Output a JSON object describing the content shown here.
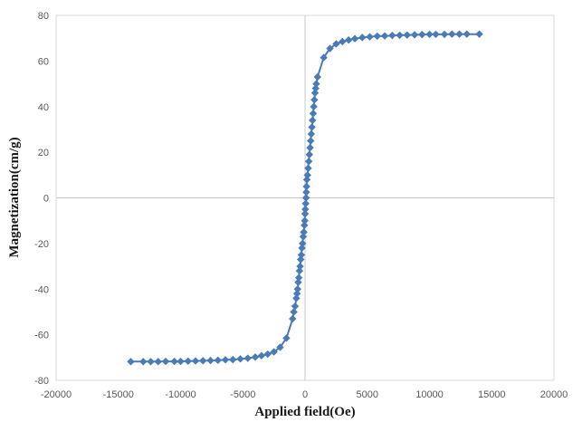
{
  "chart_data": {
    "type": "scatter",
    "title": "",
    "xlabel": "Applied field(Oe)",
    "ylabel": "Magnetization(cm/g)",
    "xlim": [
      -20000,
      20000
    ],
    "ylim": [
      -80,
      80
    ],
    "x_ticks": [
      "-20000",
      "-15000",
      "-10000",
      "-5000",
      "0",
      "5000",
      "10000",
      "15000",
      "20000"
    ],
    "y_ticks": [
      "80",
      "60",
      "40",
      "20",
      "0",
      "-20",
      "-40",
      "-60",
      "-80"
    ],
    "grid": false,
    "zero_lines": true,
    "legend": "none",
    "series_color": "#4a7ab8",
    "marker": "diamond",
    "series": [
      {
        "name": "",
        "points": [
          [
            -14000,
            -71.8
          ],
          [
            -13000,
            -71.8
          ],
          [
            -12400,
            -71.8
          ],
          [
            -11800,
            -71.8
          ],
          [
            -11200,
            -71.7
          ],
          [
            -10500,
            -71.7
          ],
          [
            -10000,
            -71.7
          ],
          [
            -9400,
            -71.6
          ],
          [
            -8800,
            -71.5
          ],
          [
            -8200,
            -71.4
          ],
          [
            -7600,
            -71.3
          ],
          [
            -7000,
            -71.2
          ],
          [
            -6400,
            -71.0
          ],
          [
            -5800,
            -70.9
          ],
          [
            -5200,
            -70.6
          ],
          [
            -4600,
            -70.3
          ],
          [
            -4000,
            -69.8
          ],
          [
            -3500,
            -69.2
          ],
          [
            -3000,
            -68.5
          ],
          [
            -2500,
            -67.5
          ],
          [
            -2000,
            -65.5
          ],
          [
            -1500,
            -61.5
          ],
          [
            -1000,
            -53
          ],
          [
            -900,
            -50
          ],
          [
            -800,
            -47.5
          ],
          [
            -700,
            -44
          ],
          [
            -650,
            -42
          ],
          [
            -600,
            -40
          ],
          [
            -550,
            -37
          ],
          [
            -500,
            -35
          ],
          [
            -450,
            -32
          ],
          [
            -400,
            -30
          ],
          [
            -350,
            -27
          ],
          [
            -300,
            -25
          ],
          [
            -250,
            -22
          ],
          [
            -200,
            -20
          ],
          [
            -150,
            -17
          ],
          [
            -100,
            -15
          ],
          [
            -50,
            -12
          ],
          [
            -20,
            -10
          ],
          [
            0,
            -7
          ],
          [
            20,
            -5
          ],
          [
            50,
            -2.5
          ],
          [
            80,
            0
          ],
          [
            100,
            2.5
          ],
          [
            120,
            5
          ],
          [
            150,
            8
          ],
          [
            200,
            10
          ],
          [
            250,
            13
          ],
          [
            300,
            16
          ],
          [
            350,
            19
          ],
          [
            400,
            22
          ],
          [
            450,
            25
          ],
          [
            500,
            28
          ],
          [
            550,
            31
          ],
          [
            600,
            34
          ],
          [
            650,
            37
          ],
          [
            700,
            40
          ],
          [
            750,
            43
          ],
          [
            800,
            46
          ],
          [
            850,
            48
          ],
          [
            900,
            50
          ],
          [
            1000,
            53
          ],
          [
            1500,
            61.5
          ],
          [
            2000,
            65.5
          ],
          [
            2500,
            67.5
          ],
          [
            3000,
            68.5
          ],
          [
            3500,
            69.2
          ],
          [
            4000,
            69.8
          ],
          [
            4600,
            70.3
          ],
          [
            5200,
            70.6
          ],
          [
            5800,
            70.9
          ],
          [
            6400,
            71.0
          ],
          [
            7000,
            71.2
          ],
          [
            7600,
            71.3
          ],
          [
            8200,
            71.4
          ],
          [
            8800,
            71.5
          ],
          [
            9400,
            71.6
          ],
          [
            10000,
            71.7
          ],
          [
            10500,
            71.7
          ],
          [
            11200,
            71.7
          ],
          [
            11800,
            71.8
          ],
          [
            12400,
            71.8
          ],
          [
            13000,
            71.8
          ],
          [
            14000,
            71.8
          ]
        ]
      }
    ]
  }
}
